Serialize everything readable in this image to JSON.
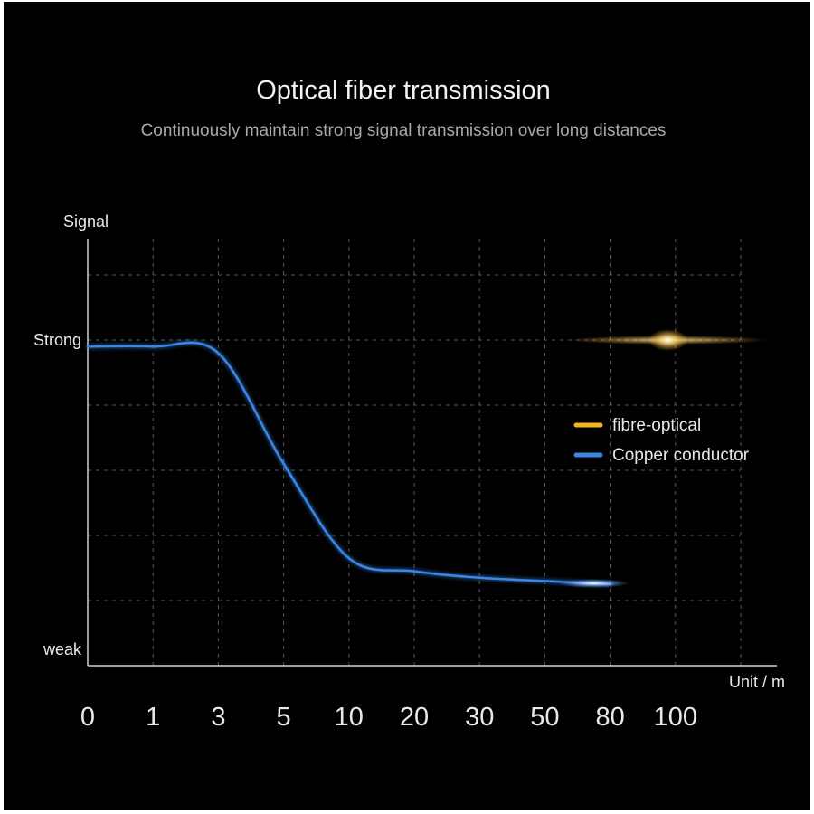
{
  "title": "Optical fiber transmission",
  "subtitle": "Continuously maintain strong signal transmission over long distances",
  "chart_data": {
    "type": "line",
    "ylabel": "Signal",
    "xlabel": "Unit / m",
    "x_ticks": [
      "0",
      "1",
      "3",
      "5",
      "10",
      "20",
      "30",
      "50",
      "80",
      "100"
    ],
    "y_ticks": [
      {
        "label": "Strong",
        "value": 1.0
      },
      {
        "label": "weak",
        "value": 0.0
      }
    ],
    "ylim": [
      0,
      1.1
    ],
    "grid": true,
    "legend_position": "right",
    "series": [
      {
        "name": "fibre-optical",
        "color": "#f5b51e",
        "points": [
          [
            0,
            1.0
          ],
          [
            1,
            1.0
          ],
          [
            3,
            1.0
          ],
          [
            5,
            1.0
          ],
          [
            10,
            1.0
          ],
          [
            20,
            1.0
          ],
          [
            30,
            1.0
          ],
          [
            50,
            1.0
          ],
          [
            80,
            1.0
          ],
          [
            100,
            1.0
          ]
        ]
      },
      {
        "name": "Copper conductor",
        "color": "#3a86e6",
        "points": [
          [
            0,
            0.98
          ],
          [
            1,
            0.98
          ],
          [
            3,
            0.96
          ],
          [
            5,
            0.62
          ],
          [
            10,
            0.33
          ],
          [
            20,
            0.29
          ],
          [
            30,
            0.27
          ],
          [
            50,
            0.26
          ],
          [
            80,
            0.25
          ]
        ]
      }
    ]
  },
  "colors": {
    "background": "#000000",
    "grid": "#5a5a5a",
    "axis": "#cfcfcf",
    "text": "#e8e8e8"
  }
}
